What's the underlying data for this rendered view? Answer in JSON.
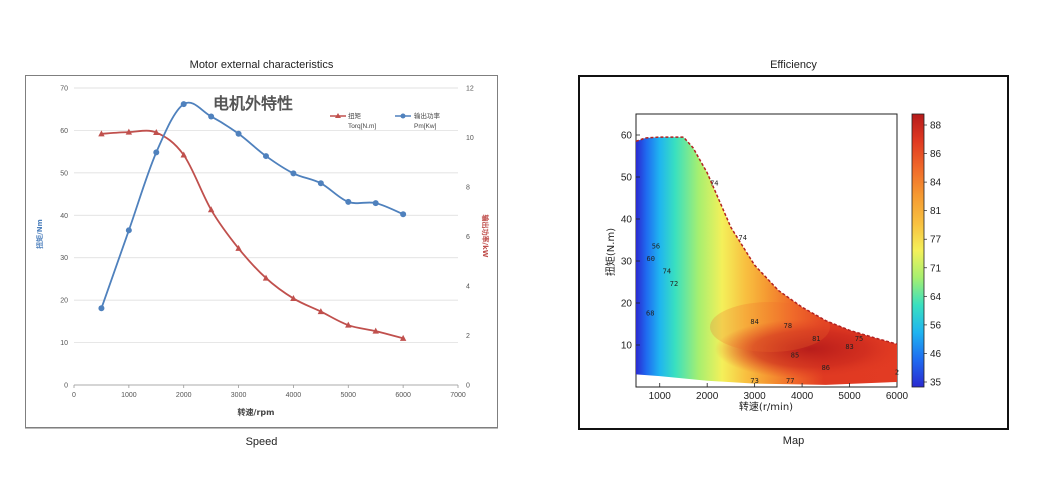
{
  "left": {
    "caption_top": "Motor external characteristics",
    "caption_bottom": "Speed"
  },
  "right": {
    "caption_top": "Efficiency",
    "caption_bottom": "Map"
  },
  "colors": {
    "torque": "#c0504d",
    "power": "#4f81bd",
    "grid": "#d9d9d9",
    "boundary": "#b22222"
  },
  "chart_data": [
    {
      "type": "line",
      "title": "电机外特性",
      "xlabel": "转速/rpm",
      "ylabel": "扭矩/Nm",
      "y2label": "输出功率/kW",
      "xlim": [
        0,
        7000
      ],
      "ylim": [
        0,
        70
      ],
      "y2lim": [
        0,
        12
      ],
      "x_ticks": [
        "0",
        "1000",
        "2000",
        "3000",
        "4000",
        "5000",
        "6000",
        "7000"
      ],
      "y_ticks": [
        "0",
        "10",
        "20",
        "30",
        "40",
        "50",
        "60",
        "70"
      ],
      "y2_ticks": [
        "0",
        "2",
        "4",
        "6",
        "8",
        "10",
        "12"
      ],
      "grid": true,
      "legend_position": "top-right",
      "series": [
        {
          "name": "扭矩",
          "name_sub": "Torq[N.m]",
          "axis": "left",
          "color": "#c0504d",
          "marker": "triangle",
          "x": [
            500,
            1000,
            1500,
            2000,
            2500,
            3000,
            3500,
            4000,
            4500,
            5000,
            5500,
            6000
          ],
          "y": [
            59.2,
            59.6,
            59.5,
            54.2,
            41.3,
            32.2,
            25.2,
            20.4,
            17.3,
            14.1,
            12.7,
            11.0
          ]
        },
        {
          "name": "输出功率",
          "name_sub": "Pm[Kw]",
          "axis": "right",
          "color": "#4f81bd",
          "marker": "circle",
          "x": [
            500,
            1000,
            1500,
            2000,
            2500,
            3000,
            3500,
            4000,
            4500,
            5000,
            5500,
            6000
          ],
          "y": [
            3.1,
            6.25,
            9.4,
            11.35,
            10.85,
            10.15,
            9.25,
            8.55,
            8.15,
            7.4,
            7.35,
            6.9
          ]
        }
      ]
    },
    {
      "type": "heatmap",
      "xlabel": "转速(r/min)",
      "ylabel": "扭矩(N.m)",
      "xlim": [
        500,
        6000
      ],
      "ylim": [
        0,
        65
      ],
      "x_ticks": [
        "1000",
        "2000",
        "3000",
        "4000",
        "5000",
        "6000"
      ],
      "y_ticks": [
        "10",
        "20",
        "30",
        "40",
        "50",
        "60"
      ],
      "colorbar_ticks": [
        "35",
        "46",
        "56",
        "64",
        "71",
        "77",
        "81",
        "84",
        "86",
        "88"
      ],
      "colorbar_colors": [
        "#2a2ad0",
        "#1f6bf0",
        "#1fb4f0",
        "#39e0c0",
        "#a6ef70",
        "#f4f05a",
        "#f8c040",
        "#f59a32",
        "#f06a2a",
        "#e03a22",
        "#b51a1a"
      ],
      "boundary_torque": {
        "x": [
          500,
          700,
          1000,
          1200,
          1500,
          1700,
          2000,
          2500,
          3000,
          3500,
          4000,
          4500,
          5000,
          5500,
          6000
        ],
        "y": [
          58.5,
          59.3,
          59.5,
          59.5,
          59.5,
          57.0,
          51.0,
          38.0,
          29.0,
          23.0,
          19.0,
          15.8,
          13.5,
          11.8,
          10.2
        ]
      },
      "contour_labels": [
        {
          "text": "60",
          "x": 810,
          "y": 30
        },
        {
          "text": "56",
          "x": 920,
          "y": 33
        },
        {
          "text": "74",
          "x": 1150,
          "y": 27
        },
        {
          "text": "72",
          "x": 1300,
          "y": 24
        },
        {
          "text": "68",
          "x": 800,
          "y": 17
        },
        {
          "text": "74",
          "x": 2150,
          "y": 48
        },
        {
          "text": "74",
          "x": 2750,
          "y": 35
        },
        {
          "text": "84",
          "x": 3000,
          "y": 15
        },
        {
          "text": "78",
          "x": 3700,
          "y": 14
        },
        {
          "text": "81",
          "x": 4300,
          "y": 11
        },
        {
          "text": "85",
          "x": 3850,
          "y": 7
        },
        {
          "text": "83",
          "x": 5000,
          "y": 9
        },
        {
          "text": "75",
          "x": 5200,
          "y": 11
        },
        {
          "text": "86",
          "x": 4500,
          "y": 4
        },
        {
          "text": "77",
          "x": 3750,
          "y": 1
        },
        {
          "text": "73",
          "x": 3000,
          "y": 1
        },
        {
          "text": "2",
          "x": 6000,
          "y": 3
        }
      ]
    }
  ]
}
